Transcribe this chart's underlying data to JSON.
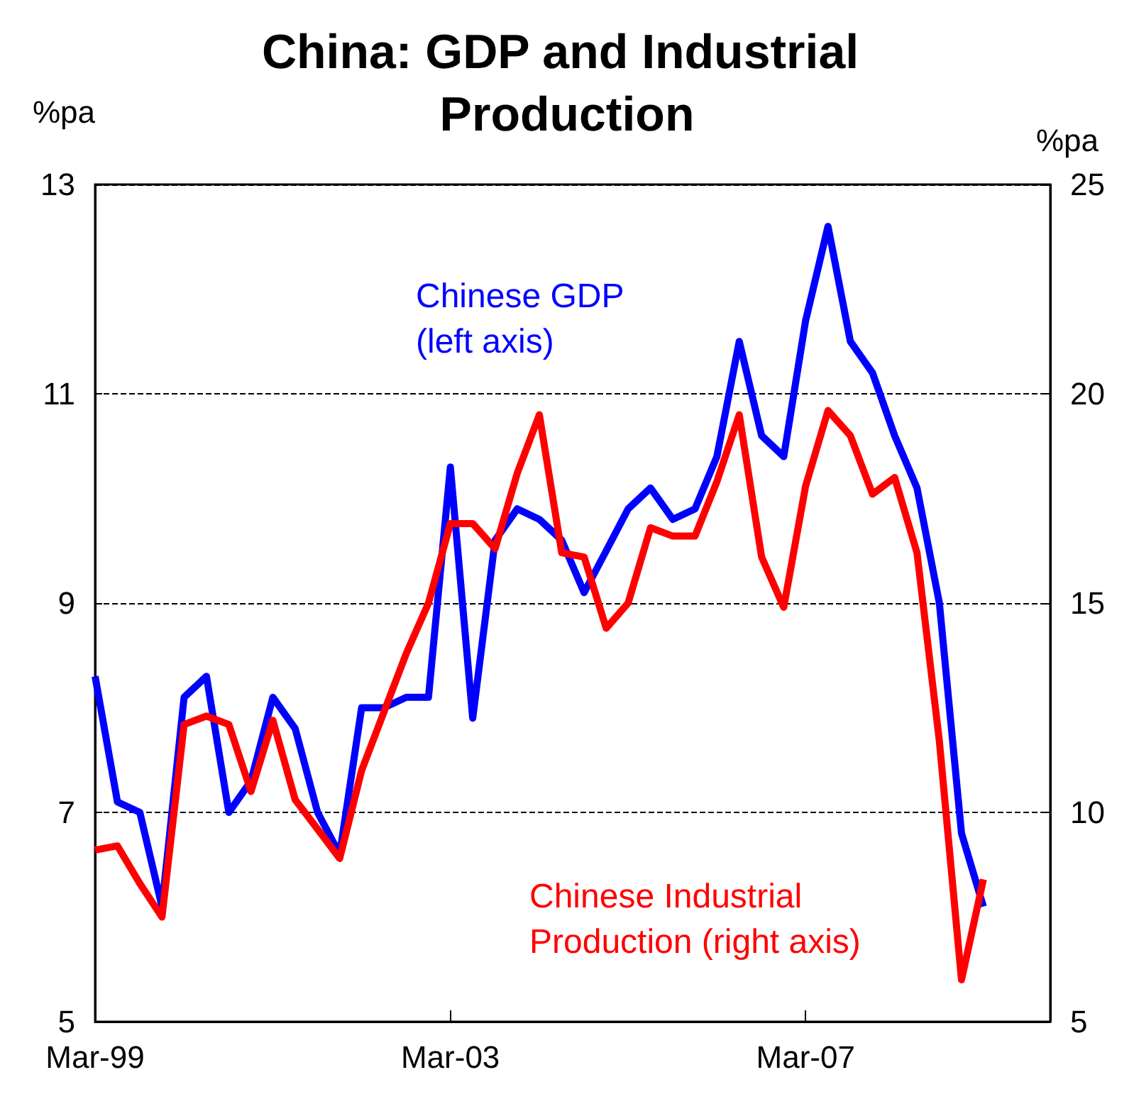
{
  "chart_data": {
    "type": "line",
    "title": "China: GDP and Industrial Production",
    "ylabel": "%pa",
    "y2label": "%pa",
    "x": [
      "1999-03",
      "1999-06",
      "1999-09",
      "1999-12",
      "2000-03",
      "2000-06",
      "2000-09",
      "2000-12",
      "2001-03",
      "2001-06",
      "2001-09",
      "2001-12",
      "2002-03",
      "2002-06",
      "2002-09",
      "2002-12",
      "2003-03",
      "2003-06",
      "2003-09",
      "2003-12",
      "2004-03",
      "2004-06",
      "2004-09",
      "2004-12",
      "2005-03",
      "2005-06",
      "2005-09",
      "2005-12",
      "2006-03",
      "2006-06",
      "2006-09",
      "2006-12",
      "2007-03",
      "2007-06",
      "2007-09",
      "2007-12",
      "2008-03",
      "2008-06",
      "2008-09",
      "2008-12",
      "2009-03"
    ],
    "series": [
      {
        "name": "Chinese GDP\n(left axis)",
        "color": "#0000ff",
        "values": [
          8.3,
          7.1,
          7.0,
          6.1,
          8.1,
          8.3,
          7.0,
          7.3,
          8.1,
          7.8,
          7.0,
          6.6,
          8.0,
          8.0,
          8.1,
          8.1,
          10.3,
          7.9,
          9.6,
          9.9,
          9.8,
          9.6,
          9.1,
          9.5,
          9.9,
          10.1,
          9.8,
          9.9,
          10.4,
          11.5,
          10.6,
          10.4,
          11.7,
          12.6,
          11.5,
          11.2,
          10.6,
          10.1,
          9.0,
          6.8,
          6.1
        ]
      },
      {
        "name": "Chinese Industrial\nProduction (right axis)",
        "color": "#ff0000",
        "axis": "y2",
        "values": [
          9.1,
          9.2,
          8.3,
          7.5,
          12.1,
          12.3,
          12.1,
          10.5,
          12.2,
          10.3,
          9.6,
          8.9,
          11.0,
          12.4,
          13.8,
          15.0,
          16.9,
          16.9,
          16.3,
          18.1,
          19.5,
          16.2,
          16.1,
          14.4,
          15.0,
          16.8,
          16.6,
          16.6,
          17.9,
          19.5,
          16.1,
          14.9,
          17.8,
          19.6,
          19.0,
          17.6,
          18.0,
          16.2,
          11.7,
          6.0,
          8.4
        ]
      }
    ],
    "xlim": [
      "1999-03",
      "2009-12"
    ],
    "xticks": [
      {
        "value": "1999-03",
        "label": "Mar-99"
      },
      {
        "value": "2003-03",
        "label": "Mar-03"
      },
      {
        "value": "2007-03",
        "label": "Mar-07"
      }
    ],
    "ylim": [
      5,
      13
    ],
    "yticks": [
      5,
      7,
      9,
      11,
      13
    ],
    "y2lim": [
      5,
      25
    ],
    "y2ticks": [
      5,
      10,
      15,
      20,
      25
    ],
    "grid": "y",
    "legend": false,
    "line_style": "solid",
    "marker": "none"
  }
}
